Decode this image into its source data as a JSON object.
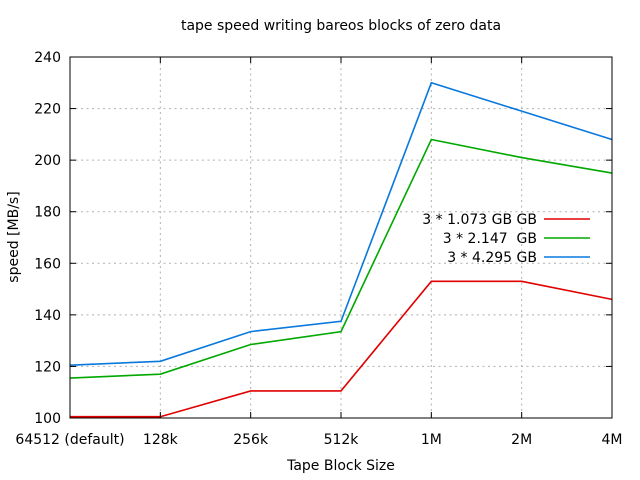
{
  "chart_data": {
    "type": "line",
    "title": "tape speed writing bareos blocks of zero data",
    "xlabel": "Tape Block Size",
    "ylabel": "speed [MB/s]",
    "categories": [
      "64512 (default)",
      "128k",
      "256k",
      "512k",
      "1M",
      "2M",
      "4M"
    ],
    "series": [
      {
        "name": "3 * 1.073 GB GB",
        "color": "#e00000",
        "values": [
          100.5,
          100.5,
          110.5,
          110.5,
          153,
          153,
          146
        ]
      },
      {
        "name": "3 * 2.147  GB",
        "color": "#00a800",
        "values": [
          115.5,
          117,
          128.5,
          133.5,
          208,
          201,
          195
        ]
      },
      {
        "name": "3 * 4.295 GB",
        "color": "#0878dd",
        "values": [
          120.5,
          122,
          133.5,
          137.5,
          230,
          219,
          208
        ]
      }
    ],
    "ylim": [
      100,
      240
    ],
    "ytick_step": 20,
    "grid": true,
    "legend_position": "inside-right-middle",
    "axis_color": "#000000",
    "grid_color": "#b0b0b0",
    "background": "#ffffff"
  }
}
